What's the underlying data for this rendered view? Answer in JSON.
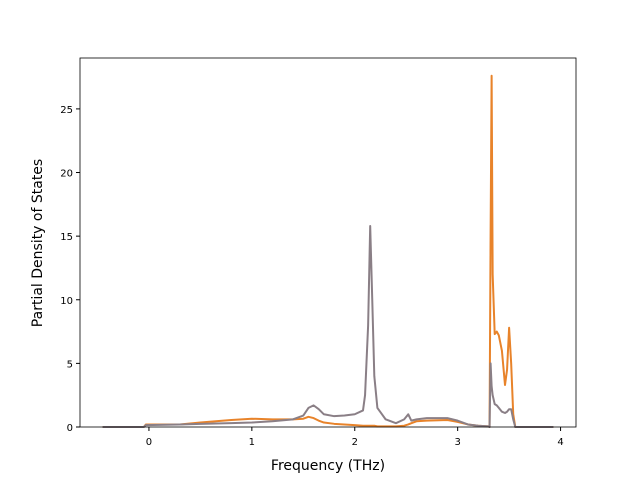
{
  "chart_data": {
    "type": "line",
    "x_label": "Frequency (THz)",
    "y_label": "Partial Density of States",
    "x": [
      -0.45,
      -0.05,
      -0.03,
      0.3,
      0.5,
      0.8,
      1.0,
      1.2,
      1.4,
      1.5,
      1.55,
      1.6,
      1.65,
      1.7,
      1.8,
      1.9,
      2.0,
      2.08,
      2.1,
      2.13,
      2.15,
      2.17,
      2.19,
      2.22,
      2.3,
      2.4,
      2.48,
      2.52,
      2.55,
      2.6,
      2.7,
      2.9,
      3.0,
      3.1,
      3.2,
      3.3,
      3.31,
      3.32,
      3.33,
      3.34,
      3.36,
      3.38,
      3.4,
      3.43,
      3.46,
      3.48,
      3.5,
      3.52,
      3.54,
      3.56,
      3.93
    ],
    "series": [
      {
        "color": "#e8832a",
        "values": [
          0,
          0,
          0.2,
          0.2,
          0.35,
          0.55,
          0.65,
          0.6,
          0.6,
          0.65,
          0.8,
          0.7,
          0.5,
          0.35,
          0.25,
          0.2,
          0.15,
          0.1,
          0.1,
          0.1,
          0.1,
          0.1,
          0.1,
          0.05,
          0.05,
          0.05,
          0.1,
          0.2,
          0.3,
          0.45,
          0.5,
          0.55,
          0.4,
          0.2,
          0.1,
          0.05,
          0,
          15,
          27.6,
          12,
          7.3,
          7.5,
          7.2,
          6.0,
          3.3,
          4.5,
          7.8,
          5,
          1,
          0,
          0
        ]
      },
      {
        "color": "#8a7f86",
        "values": [
          0,
          0,
          0.15,
          0.2,
          0.25,
          0.3,
          0.35,
          0.45,
          0.6,
          0.9,
          1.5,
          1.7,
          1.4,
          1.0,
          0.85,
          0.9,
          1.0,
          1.3,
          2.5,
          8,
          15.8,
          10,
          4,
          1.5,
          0.6,
          0.3,
          0.6,
          1.0,
          0.5,
          0.6,
          0.7,
          0.7,
          0.5,
          0.2,
          0.1,
          0.05,
          0,
          5.0,
          3.2,
          2.5,
          1.8,
          1.7,
          1.5,
          1.2,
          1.1,
          1.2,
          1.4,
          1.4,
          0.6,
          0,
          0
        ]
      }
    ],
    "xlim": [
      -0.67,
      4.15
    ],
    "ylim": [
      0,
      29.0
    ],
    "xticks": [
      0,
      1,
      2,
      3,
      4
    ],
    "yticks": [
      0,
      5,
      10,
      15,
      20,
      25
    ]
  }
}
